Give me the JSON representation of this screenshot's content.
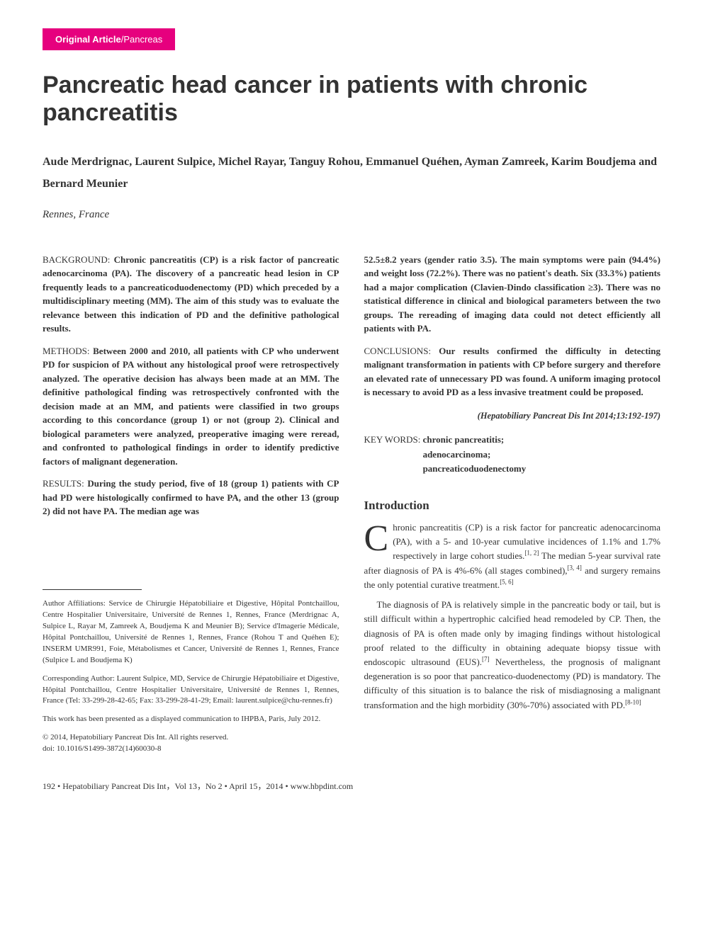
{
  "category": {
    "main": "Original Article",
    "sub": "/Pancreas",
    "bg_color": "#e6007e",
    "text_color": "#ffffff"
  },
  "title": "Pancreatic head cancer in patients with chronic pancreatitis",
  "authors": "Aude Merdrignac, Laurent Sulpice, Michel Rayar, Tanguy Rohou, Emmanuel Quéhen, Ayman Zamreek, Karim Boudjema and Bernard Meunier",
  "location": "Rennes, France",
  "abstract": {
    "background": {
      "label": "BACKGROUND:",
      "text": "Chronic pancreatitis (CP) is a risk factor of pancreatic adenocarcinoma (PA). The discovery of a pancreatic head lesion in CP frequently leads to a pancreaticoduodenectomy (PD) which preceded by a multidisciplinary meeting (MM). The aim of this study was to evaluate the relevance between this indication of PD and the definitive pathological results."
    },
    "methods": {
      "label": "METHODS:",
      "text": "Between 2000 and 2010, all patients with CP who underwent PD for suspicion of PA without any histological proof were retrospectively analyzed. The operative decision has always been made at an MM. The definitive pathological finding was retrospectively confronted with the decision made at an MM, and patients were classified in two groups according to this concordance (group 1) or not (group 2). Clinical and biological parameters were analyzed, preoperative imaging were reread, and confronted to pathological findings in order to identify predictive factors of malignant degeneration."
    },
    "results": {
      "label": "RESULTS:",
      "text_left": "During the study period, five of 18 (group 1) patients with CP had PD were histologically confirmed to have PA, and the other 13 (group 2) did not have PA. The median age was",
      "text_right": "52.5±8.2 years (gender ratio 3.5). The main symptoms were pain (94.4%) and weight loss (72.2%). There was no patient's death. Six (33.3%) patients had a major complication (Clavien-Dindo classification ≥3). There was no statistical difference in clinical and biological parameters between the two groups. The rereading of imaging data could not detect efficiently all patients with PA."
    },
    "conclusions": {
      "label": "CONCLUSIONS:",
      "text": "Our results confirmed the difficulty in detecting malignant transformation in patients with CP before surgery and therefore an elevated rate of unnecessary PD was found. A uniform imaging protocol is necessary to avoid PD as a less invasive treatment could be proposed."
    }
  },
  "citation": "(Hepatobiliary Pancreat Dis Int 2014;13:192-197)",
  "keywords": {
    "label": "KEY WORDS:",
    "items": [
      "chronic pancreatitis;",
      "adenocarcinoma;",
      "pancreaticoduodenectomy"
    ]
  },
  "introduction": {
    "heading": "Introduction",
    "dropcap": "C",
    "para1": "hronic pancreatitis (CP) is a risk factor for pancreatic adenocarcinoma (PA), with a 5- and 10-year cumulative incidences of 1.1% and 1.7% respectively in large cohort studies.[1, 2] The median 5-year survival rate after diagnosis of PA is 4%-6% (all stages combined),[3, 4] and surgery remains the only potential curative treatment.[5, 6]",
    "para2": "The diagnosis of PA is relatively simple in the pancreatic body or tail, but is still difficult within a hypertrophic calcified head remodeled by CP. Then, the diagnosis of PA is often made only by imaging findings without histological proof related to the difficulty in obtaining adequate biopsy tissue with endoscopic ultrasound (EUS).[7] Nevertheless, the prognosis of malignant degeneration is so poor that pancreaticoduodenectomy (PD) is mandatory. The difficulty of this situation is to balance the risk of misdiagnosing a malignant transformation and the high morbidity (30%-70%) associated with PD.[8-10]"
  },
  "affiliations": {
    "author_affil": {
      "label": "Author Affiliations:",
      "text": "Service de Chirurgie Hépatobiliaire et Digestive, Hôpital Pontchaillou, Centre Hospitalier Universitaire, Université de Rennes 1, Rennes, France (Merdrignac A, Sulpice L, Rayar M, Zamreek A, Boudjema K and Meunier B); Service d'Imagerie Médicale, Hôpital Pontchaillou, Université de Rennes 1, Rennes, France (Rohou T and Quéhen E); INSERM UMR991, Foie, Métabolismes et Cancer, Université de Rennes 1, Rennes, France (Sulpice L and Boudjema K)"
    },
    "corresponding": {
      "label": "Corresponding Author:",
      "text": "Laurent Sulpice, MD, Service de Chirurgie Hépatobiliaire et Digestive, Hôpital Pontchaillou, Centre Hospitalier Universitaire, Université de Rennes 1, Rennes, France (Tel: 33-299-28-42-65; Fax: 33-299-28-41-29; Email: laurent.sulpice@chu-rennes.fr)"
    },
    "presented": "This work has been presented as a displayed communication to IHPBA, Paris, July 2012.",
    "copyright": "© 2014, Hepatobiliary Pancreat Dis Int. All rights reserved.",
    "doi": "doi: 10.1016/S1499-3872(14)60030-8"
  },
  "footer": "192 • Hepatobiliary Pancreat Dis Int，Vol 13，No 2 • April 15，2014 • www.hbpdint.com",
  "colors": {
    "badge_bg": "#e6007e",
    "text": "#333333",
    "bg": "#ffffff"
  }
}
